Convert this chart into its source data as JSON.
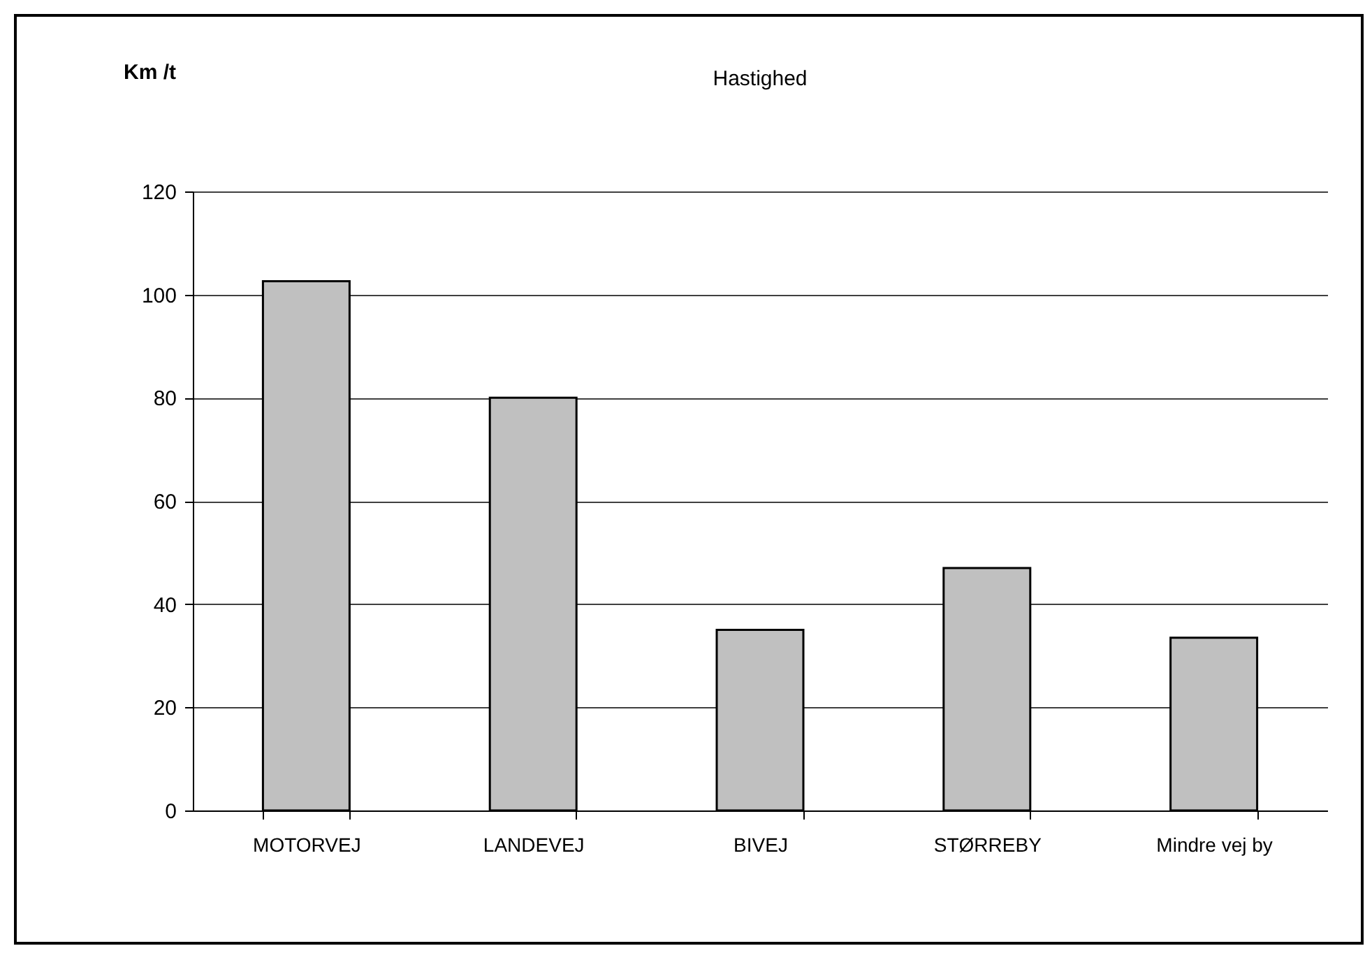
{
  "chart_data": {
    "type": "bar",
    "title": "Hastighed",
    "ylabel": "Km /t",
    "categories": [
      "MOTORVEJ",
      "LANDEVEJ",
      "BIVEJ",
      "STØRREBY",
      "Mindre vej by"
    ],
    "values": [
      102.6,
      80,
      35,
      47,
      33.5
    ],
    "color": "#c0c0c0",
    "ylim": [
      0,
      120
    ],
    "yticks": [
      0,
      20,
      40,
      60,
      80,
      100,
      120
    ],
    "grid": "y"
  }
}
